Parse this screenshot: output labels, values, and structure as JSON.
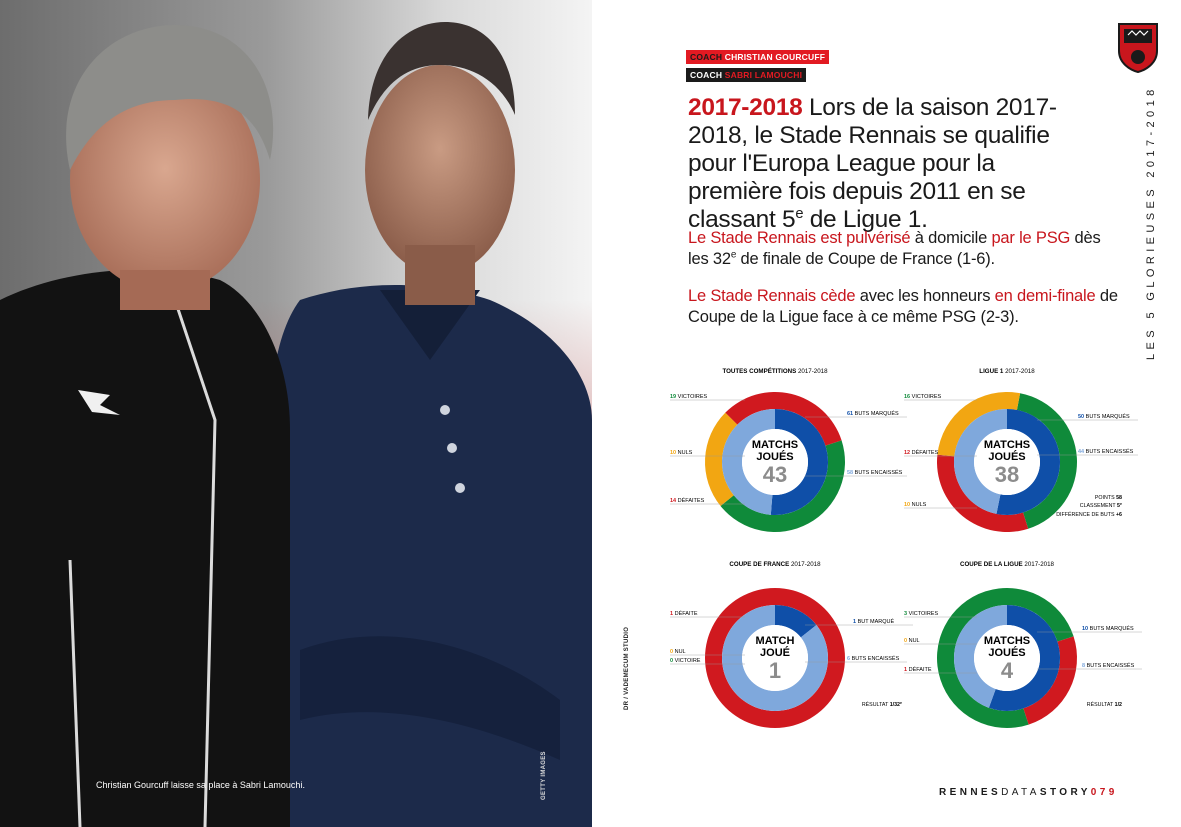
{
  "photo": {
    "caption": "Christian Gourcuff laisse sa place à Sabri Lamouchi.",
    "credit": "GETTY IMAGES"
  },
  "side_credit": "DR / VADEMECUM STUDIO",
  "coaches": {
    "coach1_label": "COACH",
    "coach1_name": "CHRISTIAN GOURCUFF",
    "coach2_label": "COACH",
    "coach2_name": "SABRI LAMOUCHI"
  },
  "lead": {
    "year": "2017-2018",
    "text_a": " Lors de la saison 2017-2018, le Stade Rennais se qualifie pour l'Europa League pour la première fois depuis 2011 en se classant 5",
    "sup": "e",
    "text_b": " de Ligue 1."
  },
  "para1": {
    "red1": "Le Stade Rennais est pulvérisé",
    "t1": " à domicile ",
    "red2": "par le PSG",
    "t2": " dès les 32",
    "sup": "e",
    "t3": " de finale de Coupe de France (1-6)."
  },
  "para2": {
    "red1": "Le Stade Rennais cède",
    "t1": " avec les honneurs ",
    "red2": "en demi-finale",
    "t2": " de Coupe de la Ligue face à ce même PSG (2-3)."
  },
  "logo_text": "STADE RENNAIS",
  "vertical_title": "LES 5 GLORIEUSES 2017-2018",
  "footer": {
    "rennes": "RENNES",
    "data": "DATA",
    "story": "STORY",
    "page": "079"
  },
  "colors": {
    "green": "#0f8a3a",
    "red": "#d0191f",
    "yellow": "#f2a612",
    "blue": "#0f4fa8",
    "lightblue": "#7fa8dc",
    "brandRed": "#c8161d"
  },
  "chart_data": [
    {
      "type": "pie",
      "title": "TOUTES COMPÉTITIONS",
      "season": "2017-2018",
      "center_label": [
        "MATCHS",
        "JOUÉS"
      ],
      "total": 43,
      "outer": [
        {
          "name": "VICTOIRES",
          "value": 19,
          "color": "green"
        },
        {
          "name": "NULS",
          "value": 10,
          "color": "yellow"
        },
        {
          "name": "DÉFAITES",
          "value": 14,
          "color": "red"
        }
      ],
      "inner": [
        {
          "name": "BUTS MARQUÉS",
          "value": 61,
          "color": "blue"
        },
        {
          "name": "BUTS ENCAISSÉS",
          "value": 58,
          "color": "lightblue"
        }
      ],
      "extra": []
    },
    {
      "type": "pie",
      "title": "LIGUE 1",
      "season": "2017-2018",
      "center_label": [
        "MATCHS",
        "JOUÉS"
      ],
      "total": 38,
      "outer": [
        {
          "name": "VICTOIRES",
          "value": 16,
          "color": "green"
        },
        {
          "name": "DÉFAITES",
          "value": 12,
          "color": "red"
        },
        {
          "name": "NULS",
          "value": 10,
          "color": "yellow"
        }
      ],
      "inner": [
        {
          "name": "BUTS MARQUÉS",
          "value": 50,
          "color": "blue"
        },
        {
          "name": "BUTS ENCAISSÉS",
          "value": 44,
          "color": "lightblue"
        }
      ],
      "extra": [
        {
          "label": "POINTS",
          "value": "58"
        },
        {
          "label": "CLASSEMENT",
          "value": "5",
          "sup": "e"
        },
        {
          "label": "DIFFÉRENCE DE BUTS",
          "value": "+6"
        }
      ]
    },
    {
      "type": "pie",
      "title": "COUPE DE FRANCE",
      "season": "2017-2018",
      "center_label": [
        "MATCH",
        "JOUÉ"
      ],
      "total": 1,
      "outer": [
        {
          "name": "DÉFAITE",
          "value": 1,
          "color": "red"
        },
        {
          "name": "NUL",
          "value": 0,
          "color": "yellow"
        },
        {
          "name": "VICTOIRE",
          "value": 0,
          "color": "green"
        }
      ],
      "inner": [
        {
          "name": "BUT MARQUÉ",
          "value": 1,
          "color": "blue"
        },
        {
          "name": "BUTS ENCAISSÉS",
          "value": 6,
          "color": "lightblue"
        }
      ],
      "extra": [
        {
          "label": "RÉSULTAT",
          "value": "1/32",
          "sup": "e"
        }
      ]
    },
    {
      "type": "pie",
      "title": "COUPE DE LA LIGUE",
      "season": "2017-2018",
      "center_label": [
        "MATCHS",
        "JOUÉS"
      ],
      "total": 4,
      "outer": [
        {
          "name": "VICTOIRES",
          "value": 3,
          "color": "green"
        },
        {
          "name": "NUL",
          "value": 0,
          "color": "yellow"
        },
        {
          "name": "DÉFAITE",
          "value": 1,
          "color": "red"
        }
      ],
      "inner": [
        {
          "name": "BUTS MARQUÉS",
          "value": 10,
          "color": "blue"
        },
        {
          "name": "BUTS ENCAISSÉS",
          "value": 8,
          "color": "lightblue"
        }
      ],
      "extra": [
        {
          "label": "RÉSULTAT",
          "value": "1/2"
        }
      ]
    }
  ]
}
